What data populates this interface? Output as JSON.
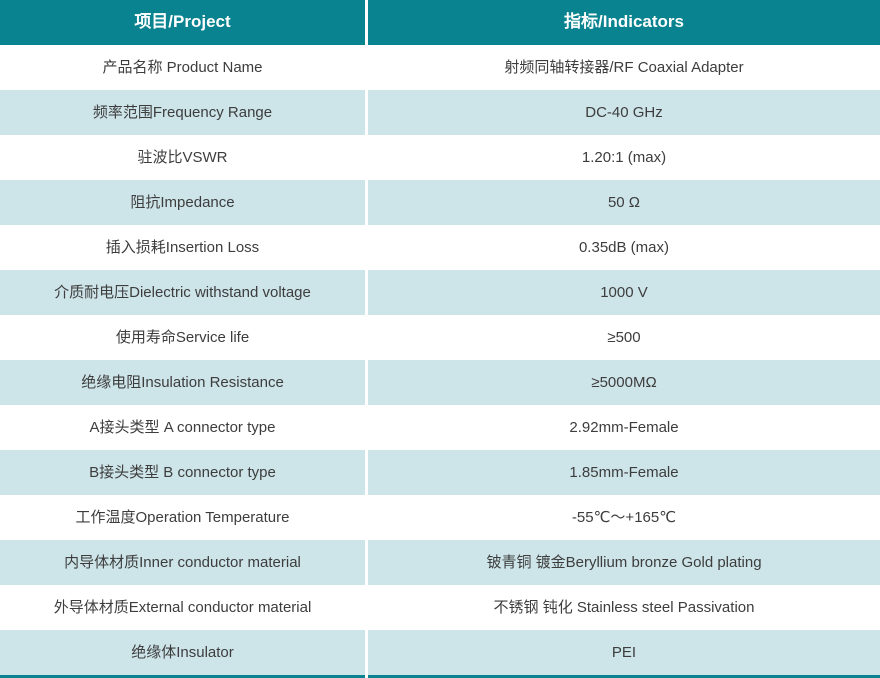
{
  "colors": {
    "header-bg": "#08838F",
    "row-alt": "#CDE4E9",
    "divider": "#FFFFFF",
    "text": "#3D3D3D",
    "header-text": "#FFFFFF"
  },
  "table": {
    "headers": {
      "project": "项目/Project",
      "indicator": "指标/Indicators"
    },
    "rows": [
      {
        "project": "产品名称 Product Name",
        "indicator": "射频同轴转接器/RF Coaxial Adapter"
      },
      {
        "project": "频率范围Frequency Range",
        "indicator": "DC-40 GHz"
      },
      {
        "project": "驻波比VSWR",
        "indicator": "1.20:1 (max)"
      },
      {
        "project": "阻抗Impedance",
        "indicator": "50 Ω"
      },
      {
        "project": "插入损耗Insertion Loss",
        "indicator": "0.35dB (max)"
      },
      {
        "project": "介质耐电压Dielectric withstand voltage",
        "indicator": "1000 V"
      },
      {
        "project": "使用寿命Service life",
        "indicator": "≥500"
      },
      {
        "project": "绝缘电阻Insulation Resistance",
        "indicator": "≥5000MΩ"
      },
      {
        "project": "A接头类型 A connector type",
        "indicator": "2.92mm-Female"
      },
      {
        "project": "B接头类型 B connector type",
        "indicator": "1.85mm-Female"
      },
      {
        "project": "工作温度Operation Temperature",
        "indicator": "-55℃～+165℃"
      },
      {
        "project": "内导体材质Inner conductor material",
        "indicator": "铍青铜 镀金Beryllium bronze Gold plating"
      },
      {
        "project": "外导体材质External conductor material",
        "indicator": "不锈钢 钝化 Stainless steel Passivation"
      },
      {
        "project": "绝缘体Insulator",
        "indicator": "PEI"
      }
    ]
  }
}
